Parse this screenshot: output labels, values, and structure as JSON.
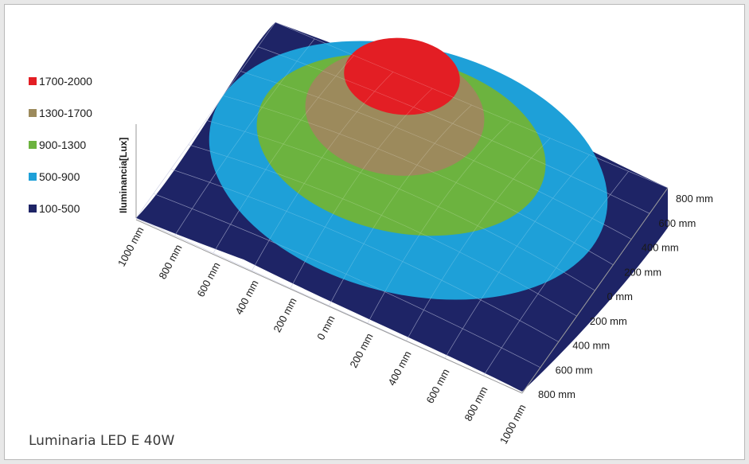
{
  "caption": "Luminaria LED E 40W",
  "chart_data": {
    "type": "surface",
    "zlabel": "Iluminancia[Lux]",
    "x_ticks": [
      "1000 mm",
      "800 mm",
      "600 mm",
      "400 mm",
      "200 mm",
      "0 mm",
      "200 mm",
      "400 mm",
      "600 mm",
      "800 mm",
      "1000 mm"
    ],
    "y_ticks": [
      "800 mm",
      "600 mm",
      "400 mm",
      "200 mm",
      "0 mm",
      "200 mm",
      "400 mm",
      "600 mm",
      "800 mm"
    ],
    "legend": [
      {
        "label": "1700-2000",
        "color": "#e31e24"
      },
      {
        "label": "1300-1700",
        "color": "#9c8a5c"
      },
      {
        "label": "900-1300",
        "color": "#6cb33f"
      },
      {
        "label": "500-900",
        "color": "#1ea0d8"
      },
      {
        "label": "100-500",
        "color": "#1e2466"
      }
    ],
    "bands": [
      {
        "range": [
          100,
          500
        ],
        "color": "#1e2466"
      },
      {
        "range": [
          500,
          900
        ],
        "color": "#1ea0d8"
      },
      {
        "range": [
          900,
          1300
        ],
        "color": "#6cb33f"
      },
      {
        "range": [
          1300,
          1700
        ],
        "color": "#9c8a5c"
      },
      {
        "range": [
          1700,
          2000
        ],
        "color": "#e31e24"
      }
    ]
  }
}
